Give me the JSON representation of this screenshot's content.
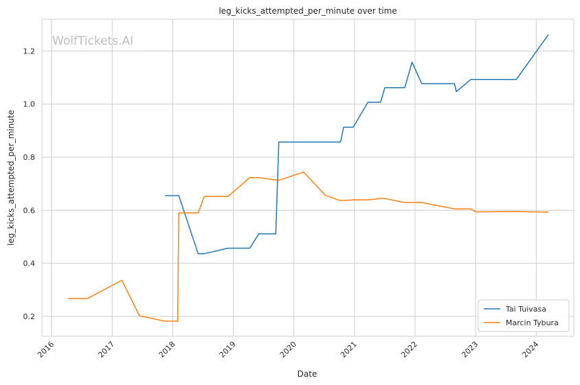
{
  "chart_data": {
    "type": "line",
    "title": "leg_kicks_attempted_per_minute over time",
    "xlabel": "Date",
    "ylabel": "leg_kicks_attempted_per_minute",
    "watermark": "WolfTickets.AI",
    "xlim": [
      2015.84,
      2024.62
    ],
    "ylim": [
      0.125,
      1.32
    ],
    "x_ticks": [
      2016,
      2017,
      2018,
      2019,
      2020,
      2021,
      2022,
      2023,
      2024
    ],
    "x_tick_labels": [
      "2016",
      "2017",
      "2018",
      "2019",
      "2020",
      "2021",
      "2022",
      "2023",
      "2024"
    ],
    "y_ticks": [
      0.2,
      0.4,
      0.6,
      0.8,
      1.0,
      1.2
    ],
    "y_tick_labels": [
      "0.2",
      "0.4",
      "0.6",
      "0.8",
      "1.0",
      "1.2"
    ],
    "grid": true,
    "legend_position": "lower-right",
    "series": [
      {
        "name": "Tai Tuivasa",
        "color": "#1f77b4",
        "x": [
          2017.87,
          2018.1,
          2018.42,
          2018.52,
          2018.91,
          2019.27,
          2019.42,
          2019.7,
          2019.75,
          2020.77,
          2020.82,
          2020.98,
          2021.22,
          2021.43,
          2021.5,
          2021.83,
          2021.95,
          2022.11,
          2022.65,
          2022.68,
          2022.92,
          2023.67,
          2024.2
        ],
        "y": [
          0.655,
          0.655,
          0.436,
          0.436,
          0.457,
          0.457,
          0.511,
          0.511,
          0.857,
          0.857,
          0.913,
          0.913,
          1.007,
          1.007,
          1.062,
          1.062,
          1.158,
          1.077,
          1.077,
          1.047,
          1.093,
          1.093,
          1.262
        ]
      },
      {
        "name": "Marcin Tybura",
        "color": "#ff7f0e",
        "x": [
          2016.27,
          2016.59,
          2017.16,
          2017.45,
          2017.87,
          2018.08,
          2018.1,
          2018.42,
          2018.52,
          2018.91,
          2019.27,
          2019.42,
          2019.75,
          2020.16,
          2020.52,
          2020.77,
          2020.98,
          2021.22,
          2021.43,
          2021.5,
          2021.83,
          2022.11,
          2022.65,
          2022.92,
          2023.0,
          2023.67,
          2024.2
        ],
        "y": [
          0.267,
          0.267,
          0.336,
          0.202,
          0.182,
          0.182,
          0.59,
          0.59,
          0.652,
          0.652,
          0.723,
          0.723,
          0.713,
          0.744,
          0.656,
          0.636,
          0.639,
          0.639,
          0.644,
          0.644,
          0.629,
          0.629,
          0.605,
          0.605,
          0.594,
          0.595,
          0.593
        ]
      }
    ]
  }
}
